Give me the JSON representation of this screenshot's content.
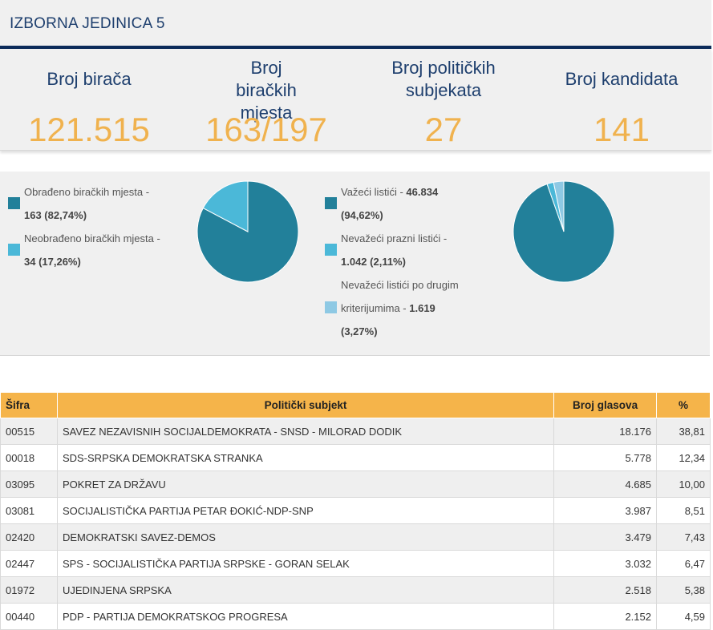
{
  "header": {
    "title": "IZBORNA JEDINICA 5"
  },
  "stats": [
    {
      "label": "Broj birača",
      "value": "121.515"
    },
    {
      "label": "Broj biračkih mjesta",
      "value": "163/197"
    },
    {
      "label": "Broj političkih subjekata",
      "value": "27"
    },
    {
      "label": "Broj kandidata",
      "value": "141"
    }
  ],
  "colors": {
    "dark_teal": "#22809a",
    "light_blue": "#4bb8d8",
    "pale_blue": "#8ec9e4",
    "accent_orange": "#f5b44a",
    "navy": "#1e3f6e"
  },
  "polling_stations": {
    "legend": [
      {
        "text": "Obrađeno biračkih mjesta -",
        "bold": "163 (82,74%)"
      },
      {
        "text": "Neobrađeno biračkih mjesta -",
        "bold": "34 (17,26%)"
      }
    ],
    "fractions": [
      0.8274,
      0.1726
    ]
  },
  "ballots": {
    "legend": [
      {
        "text": "Važeći listići -",
        "bold_inline": "46.834",
        "bold": "(94,62%)"
      },
      {
        "text": "Nevažeći prazni listići -",
        "bold": "1.042 (2,11%)"
      },
      {
        "text_line1": "Nevažeći listići po drugim",
        "text_line2": "kriterijumima -",
        "bold_inline": "1.619",
        "bold": "(3,27%)"
      }
    ],
    "fractions": [
      0.9462,
      0.0211,
      0.0327
    ]
  },
  "table": {
    "headers": [
      "Šifra",
      "Politički subjekt",
      "Broj glasova",
      "%"
    ],
    "rows": [
      [
        "00515",
        "SAVEZ NEZAVISNIH SOCIJALDEMOKRATA - SNSD - MILORAD DODIK",
        "18.176",
        "38,81"
      ],
      [
        "00018",
        "SDS-SRPSKA DEMOKRATSKA STRANKA",
        "5.778",
        "12,34"
      ],
      [
        "03095",
        "POKRET ZA DRŽAVU",
        "4.685",
        "10,00"
      ],
      [
        "03081",
        "SOCIJALISTIČKA PARTIJA PETAR ĐOKIĆ-NDP-SNP",
        "3.987",
        "8,51"
      ],
      [
        "02420",
        "DEMOKRATSKI SAVEZ-DEMOS",
        "3.479",
        "7,43"
      ],
      [
        "02447",
        "SPS - SOCIJALISTIČKA PARTIJA SRPSKE - GORAN SELAK",
        "3.032",
        "6,47"
      ],
      [
        "01972",
        "UJEDINJENA SRPSKA",
        "2.518",
        "5,38"
      ],
      [
        "00440",
        "PDP - PARTIJA DEMOKRATSKOG PROGRESA",
        "2.152",
        "4,59"
      ]
    ]
  }
}
